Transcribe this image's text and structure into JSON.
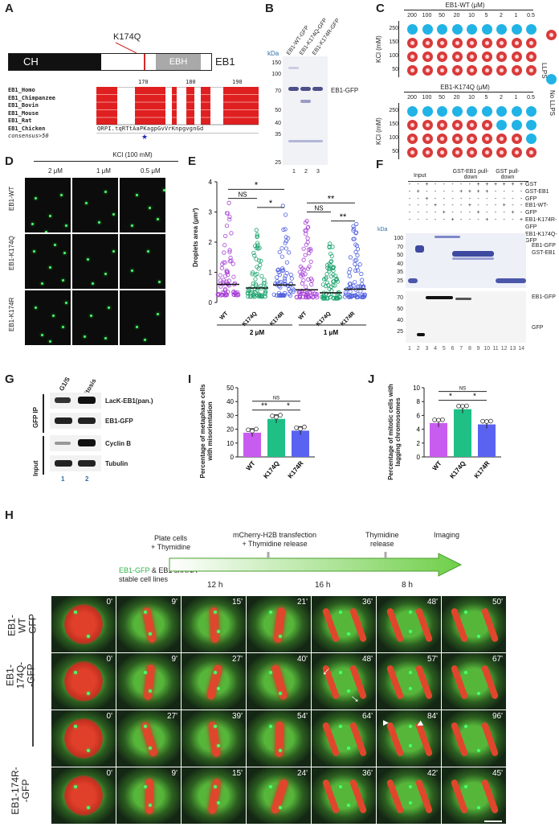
{
  "panels": {
    "A": "A",
    "B": "B",
    "C": "C",
    "D": "D",
    "E": "E",
    "F": "F",
    "G": "G",
    "H": "H",
    "I": "I",
    "J": "J"
  },
  "a": {
    "domains": [
      "CH",
      "EBH",
      "EB1"
    ],
    "mutation": "K174Q",
    "ruler": [
      "170",
      "180",
      "190"
    ],
    "species": [
      "EB1_Homo",
      "EB1_Chimpanzee",
      "EB1_Bovin",
      "EB1_Mouse",
      "EB1_Rat",
      "EB1_Chicken",
      "consensus>50"
    ],
    "consensus": "QRPI.tqRTtAaPKagpGvVrKnpgvgnGd"
  },
  "b": {
    "kda_label": "kDa",
    "markers": [
      "150",
      "100",
      "70",
      "50",
      "40",
      "35",
      "25"
    ],
    "lanes": [
      "EB1-WT-GFP",
      "EB1-K174Q-GFP",
      "EB1-K174R-GFP"
    ],
    "band_label": "EB1-GFP",
    "lane_numbers": [
      "1",
      "2",
      "3"
    ]
  },
  "c": {
    "title_wt": "EB1-WT (μM)",
    "title_k174q": "EB1-K174Q (μM)",
    "concentrations": [
      "200",
      "100",
      "50",
      "20",
      "10",
      "5",
      "2",
      "1",
      "0.5"
    ],
    "kcl_label": "KCl (mM)",
    "kcl": [
      "250",
      "150",
      "100",
      "50"
    ],
    "legend": [
      "LLPS",
      "No LLPS"
    ],
    "wt_grid": [
      [
        0,
        0,
        0,
        0,
        0,
        0,
        0,
        0,
        0
      ],
      [
        1,
        1,
        1,
        1,
        1,
        1,
        1,
        1,
        1
      ],
      [
        1,
        1,
        1,
        1,
        1,
        1,
        1,
        1,
        1
      ],
      [
        1,
        1,
        1,
        1,
        1,
        1,
        1,
        1,
        1
      ]
    ],
    "k174q_grid": [
      [
        0,
        0,
        0,
        0,
        0,
        0,
        0,
        0,
        0
      ],
      [
        1,
        1,
        1,
        1,
        1,
        1,
        0,
        0,
        0
      ],
      [
        1,
        1,
        1,
        1,
        1,
        1,
        1,
        1,
        0
      ],
      [
        1,
        1,
        1,
        1,
        1,
        1,
        1,
        1,
        1
      ]
    ]
  },
  "d": {
    "condition": "KCl (100 mM)",
    "concentrations": [
      "2 μM",
      "1 μM",
      "0.5 μM"
    ],
    "rows": [
      "EB1-WT",
      "EB1-K174Q",
      "EB1-K174R"
    ]
  },
  "e": {
    "chart_data": {
      "type": "scatter",
      "ylabel": "Droplets area (μm²)",
      "yticks": [
        "0",
        "1",
        "2",
        "3",
        "4"
      ],
      "ylim": [
        0,
        4
      ],
      "categories": [
        "WT",
        "K174Q",
        "K174R",
        "WT",
        "K174Q",
        "K174R"
      ],
      "groups": [
        "2 μM",
        "1 μM"
      ],
      "means": [
        0.6,
        0.48,
        0.58,
        0.42,
        0.32,
        0.44
      ],
      "max_values": [
        3.3,
        2.4,
        3.2,
        2.7,
        1.95,
        2.6
      ],
      "colors": [
        "#a63fd6",
        "#1aa36e",
        "#4f5fe0",
        "#a63fd6",
        "#1aa36e",
        "#4f5fe0"
      ],
      "significance": [
        "*",
        "NS",
        "*",
        "**",
        "NS",
        "**"
      ]
    }
  },
  "f": {
    "header": [
      "Input",
      "GST-EB1 pull-down",
      "GST pull-down"
    ],
    "row_labels": [
      "GST",
      "GST-EB1",
      "GFP",
      "EB1-WT-GFP",
      "EB1-K174R-GFP",
      "EB1-K174Q-GFP"
    ],
    "kda_label": "kDa",
    "top_markers": [
      "100",
      "70",
      "50",
      "40",
      "35",
      "25"
    ],
    "bottom_markers": [
      "70",
      "50",
      "40",
      "25"
    ],
    "top_bands": [
      "EB1-GFP",
      "GST-EB1"
    ],
    "bottom_bands": [
      "EB1-GFP",
      "GFP"
    ],
    "lane_numbers": [
      "1",
      "2",
      "3",
      "4",
      "5",
      "6",
      "7",
      "8",
      "9",
      "10",
      "11",
      "12",
      "13",
      "14"
    ]
  },
  "g": {
    "columns": [
      "G1/S",
      "Mitosis"
    ],
    "groups": [
      "GFP IP",
      "Input"
    ],
    "rows": [
      "LacK-EB1(pan.)",
      "EB1-GFP",
      "Cyclin B",
      "Tubulin"
    ],
    "lane_numbers": [
      "1",
      "2"
    ]
  },
  "i": {
    "chart_data": {
      "type": "bar",
      "ylabel": "Percentage of metaphase cells with misorientation",
      "categories": [
        "WT",
        "K174Q",
        "K174R"
      ],
      "values": [
        17.5,
        27.5,
        19
      ],
      "yticks": [
        "0",
        "10",
        "20",
        "30",
        "40",
        "50"
      ],
      "ylim": [
        0,
        50
      ],
      "colors": [
        "#c85cf0",
        "#1fbf86",
        "#5a62f2"
      ],
      "significance": [
        "NS",
        "**",
        "*"
      ]
    }
  },
  "j": {
    "chart_data": {
      "type": "bar",
      "ylabel": "Percentage of mitotic cells with lagging chromosomes",
      "categories": [
        "WT",
        "K174Q",
        "K174R"
      ],
      "values": [
        4.9,
        6.9,
        4.7
      ],
      "yticks": [
        "0",
        "2",
        "4",
        "6",
        "8",
        "10"
      ],
      "ylim": [
        0,
        10
      ],
      "colors": [
        "#c85cf0",
        "#1fbf86",
        "#5a62f2"
      ],
      "significance": [
        "NS",
        "*",
        "*"
      ]
    }
  },
  "h": {
    "timeline_steps": [
      "Plate cells\n+ Thymidine",
      "mCherry-H2B transfection\n+ Thymidine release",
      "Thymidine\nrelease",
      "Imaging"
    ],
    "stable_label_green": "EB1-GFP",
    "stable_label_rest": " & EB1 shRNA\nstable cell lines",
    "durations": [
      "12 h",
      "16 h",
      "8 h"
    ],
    "row_labels": [
      "EB1-WT\n-GFP",
      "EB1-174Q-\n-GFP",
      "EB1-174R-\n-GFP"
    ],
    "times": [
      [
        "0'",
        "9'",
        "15'",
        "21'",
        "36'",
        "48'",
        "50'"
      ],
      [
        "0'",
        "9'",
        "27'",
        "40'",
        "48'",
        "57'",
        "67'"
      ],
      [
        "0'",
        "27'",
        "39'",
        "54'",
        "64'",
        "84'",
        "96'"
      ],
      [
        "0'",
        "9'",
        "15'",
        "24'",
        "36'",
        "42'",
        "45'"
      ]
    ]
  }
}
